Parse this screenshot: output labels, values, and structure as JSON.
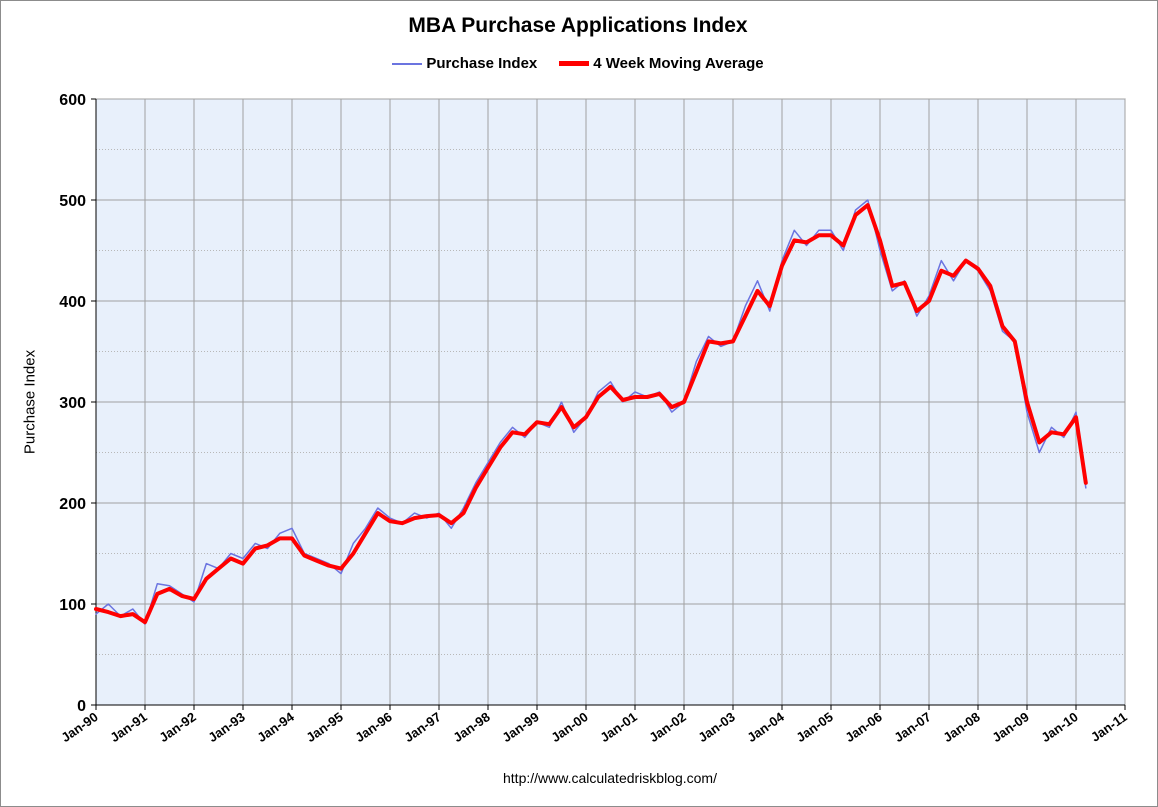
{
  "chart_data": {
    "type": "line",
    "title": "MBA Purchase Applications Index",
    "ylabel": "Purchase Index",
    "xlabel": "",
    "source": "http://www.calculatedriskblog.com/",
    "ylim": [
      0,
      600
    ],
    "yticks": [
      "0",
      "100",
      "200",
      "300",
      "400",
      "500",
      "600"
    ],
    "xlim": [
      1990.0,
      2011.0
    ],
    "xticks": [
      "Jan-90",
      "Jan-91",
      "Jan-92",
      "Jan-93",
      "Jan-94",
      "Jan-95",
      "Jan-96",
      "Jan-97",
      "Jan-98",
      "Jan-99",
      "Jan-00",
      "Jan-01",
      "Jan-02",
      "Jan-03",
      "Jan-04",
      "Jan-05",
      "Jan-06",
      "Jan-07",
      "Jan-08",
      "Jan-09",
      "Jan-10",
      "Jan-11"
    ],
    "grid": true,
    "legend_position": "top",
    "colors": {
      "purchase_index": "#6b74e0",
      "moving_average": "#ff0000",
      "plot_bg": "#e8f0fb",
      "grid": "#a0a0a0"
    },
    "series": [
      {
        "name": "Purchase Index",
        "x": [
          1990.0,
          1990.25,
          1990.5,
          1990.75,
          1991.0,
          1991.25,
          1991.5,
          1991.75,
          1992.0,
          1992.25,
          1992.5,
          1992.75,
          1993.0,
          1993.25,
          1993.5,
          1993.75,
          1994.0,
          1994.25,
          1994.5,
          1994.75,
          1995.0,
          1995.25,
          1995.5,
          1995.75,
          1996.0,
          1996.25,
          1996.5,
          1996.75,
          1997.0,
          1997.25,
          1997.5,
          1997.75,
          1998.0,
          1998.25,
          1998.5,
          1998.75,
          1999.0,
          1999.25,
          1999.5,
          1999.75,
          2000.0,
          2000.25,
          2000.5,
          2000.75,
          2001.0,
          2001.25,
          2001.5,
          2001.75,
          2002.0,
          2002.25,
          2002.5,
          2002.75,
          2003.0,
          2003.25,
          2003.5,
          2003.75,
          2004.0,
          2004.25,
          2004.5,
          2004.75,
          2005.0,
          2005.25,
          2005.5,
          2005.75,
          2006.0,
          2006.25,
          2006.5,
          2006.75,
          2007.0,
          2007.25,
          2007.5,
          2007.75,
          2008.0,
          2008.25,
          2008.5,
          2008.75,
          2009.0,
          2009.25,
          2009.5,
          2009.75,
          2010.0,
          2010.2
        ],
        "y": [
          90,
          100,
          88,
          95,
          80,
          120,
          118,
          110,
          102,
          140,
          135,
          150,
          145,
          160,
          155,
          170,
          175,
          150,
          145,
          140,
          130,
          160,
          175,
          195,
          185,
          180,
          190,
          185,
          190,
          175,
          195,
          220,
          240,
          260,
          275,
          265,
          280,
          275,
          300,
          270,
          285,
          310,
          320,
          300,
          310,
          305,
          310,
          290,
          300,
          340,
          365,
          355,
          360,
          395,
          420,
          390,
          440,
          470,
          455,
          470,
          470,
          450,
          490,
          500,
          450,
          410,
          420,
          385,
          405,
          440,
          420,
          440,
          430,
          410,
          370,
          360,
          290,
          250,
          275,
          265,
          290,
          215
        ]
      },
      {
        "name": "4 Week Moving Average",
        "x": [
          1990.0,
          1990.25,
          1990.5,
          1990.75,
          1991.0,
          1991.25,
          1991.5,
          1991.75,
          1992.0,
          1992.25,
          1992.5,
          1992.75,
          1993.0,
          1993.25,
          1993.5,
          1993.75,
          1994.0,
          1994.25,
          1994.5,
          1994.75,
          1995.0,
          1995.25,
          1995.5,
          1995.75,
          1996.0,
          1996.25,
          1996.5,
          1996.75,
          1997.0,
          1997.25,
          1997.5,
          1997.75,
          1998.0,
          1998.25,
          1998.5,
          1998.75,
          1999.0,
          1999.25,
          1999.5,
          1999.75,
          2000.0,
          2000.25,
          2000.5,
          2000.75,
          2001.0,
          2001.25,
          2001.5,
          2001.75,
          2002.0,
          2002.25,
          2002.5,
          2002.75,
          2003.0,
          2003.25,
          2003.5,
          2003.75,
          2004.0,
          2004.25,
          2004.5,
          2004.75,
          2005.0,
          2005.25,
          2005.5,
          2005.75,
          2006.0,
          2006.25,
          2006.5,
          2006.75,
          2007.0,
          2007.25,
          2007.5,
          2007.75,
          2008.0,
          2008.25,
          2008.5,
          2008.75,
          2009.0,
          2009.25,
          2009.5,
          2009.75,
          2010.0,
          2010.2
        ],
        "y": [
          95,
          92,
          88,
          90,
          82,
          110,
          115,
          108,
          105,
          125,
          135,
          145,
          140,
          155,
          158,
          165,
          165,
          148,
          143,
          138,
          135,
          150,
          170,
          190,
          182,
          180,
          185,
          187,
          188,
          180,
          190,
          215,
          235,
          255,
          270,
          268,
          280,
          278,
          295,
          275,
          285,
          305,
          315,
          302,
          305,
          305,
          308,
          295,
          300,
          330,
          360,
          358,
          360,
          385,
          410,
          395,
          435,
          460,
          458,
          465,
          465,
          455,
          485,
          495,
          460,
          415,
          418,
          390,
          400,
          430,
          425,
          440,
          432,
          415,
          375,
          360,
          300,
          260,
          270,
          268,
          285,
          220
        ]
      }
    ]
  }
}
